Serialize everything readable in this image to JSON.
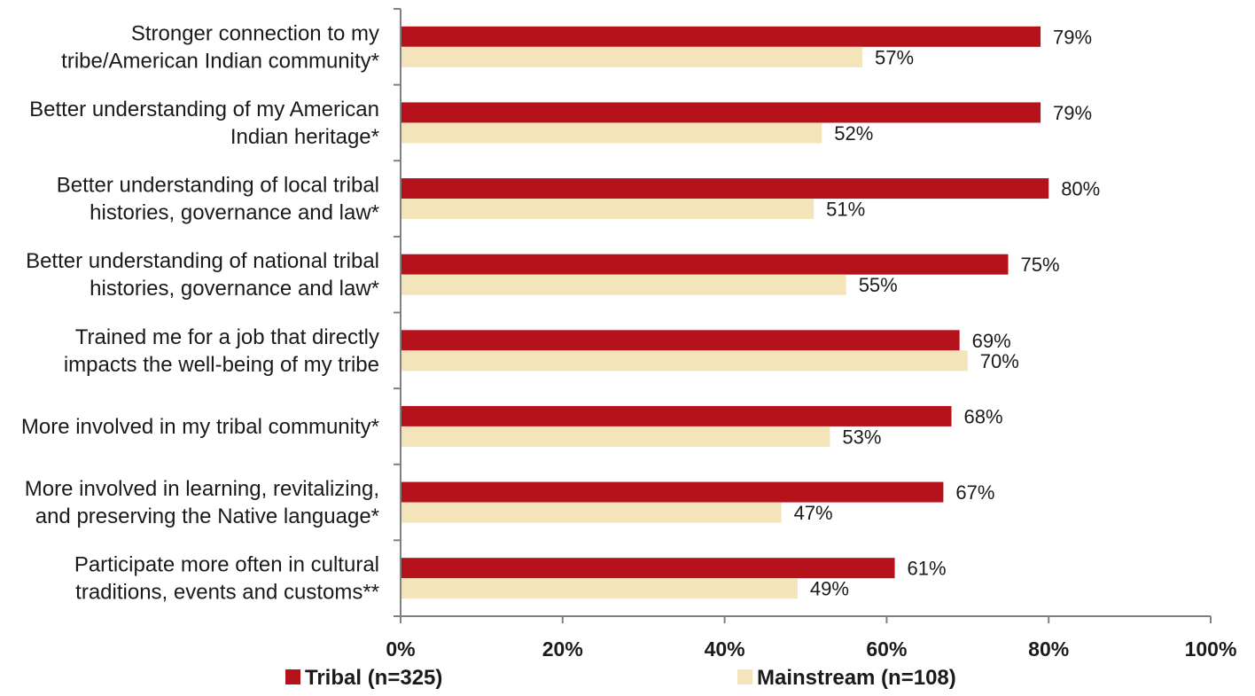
{
  "chart_data": {
    "type": "bar",
    "orientation": "horizontal",
    "categories": [
      [
        "Stronger connection to my",
        "tribe/American Indian community*"
      ],
      [
        "Better understanding of my American",
        "Indian heritage*"
      ],
      [
        "Better understanding of local tribal",
        "histories, governance and law*"
      ],
      [
        "Better understanding of national tribal",
        "histories, governance and law*"
      ],
      [
        "Trained me for a job that directly",
        "impacts the well-being of my tribe"
      ],
      [
        "More involved in my tribal community*"
      ],
      [
        "More involved in learning, revitalizing,",
        "and preserving the Native language*"
      ],
      [
        "Participate more often in cultural",
        "traditions, events and customs**"
      ]
    ],
    "series": [
      {
        "name": "Tribal (n=325)",
        "color": "#b5121b",
        "values": [
          79,
          79,
          80,
          75,
          69,
          68,
          67,
          61
        ],
        "labels": [
          "79%",
          "79%",
          "80%",
          "75%",
          "69%",
          "68%",
          "67%",
          "61%"
        ]
      },
      {
        "name": "Mainstream (n=108)",
        "color": "#f3e4b9",
        "values": [
          57,
          52,
          51,
          55,
          70,
          53,
          47,
          49
        ],
        "labels": [
          "57%",
          "52%",
          "51%",
          "55%",
          "70%",
          "53%",
          "47%",
          "49%"
        ]
      }
    ],
    "xlim": [
      0,
      100
    ],
    "xticks": [
      0,
      20,
      40,
      60,
      80,
      100
    ],
    "xtick_labels": [
      "0%",
      "20%",
      "40%",
      "60%",
      "80%",
      "100%"
    ],
    "grid": false,
    "legend_position": "bottom"
  }
}
